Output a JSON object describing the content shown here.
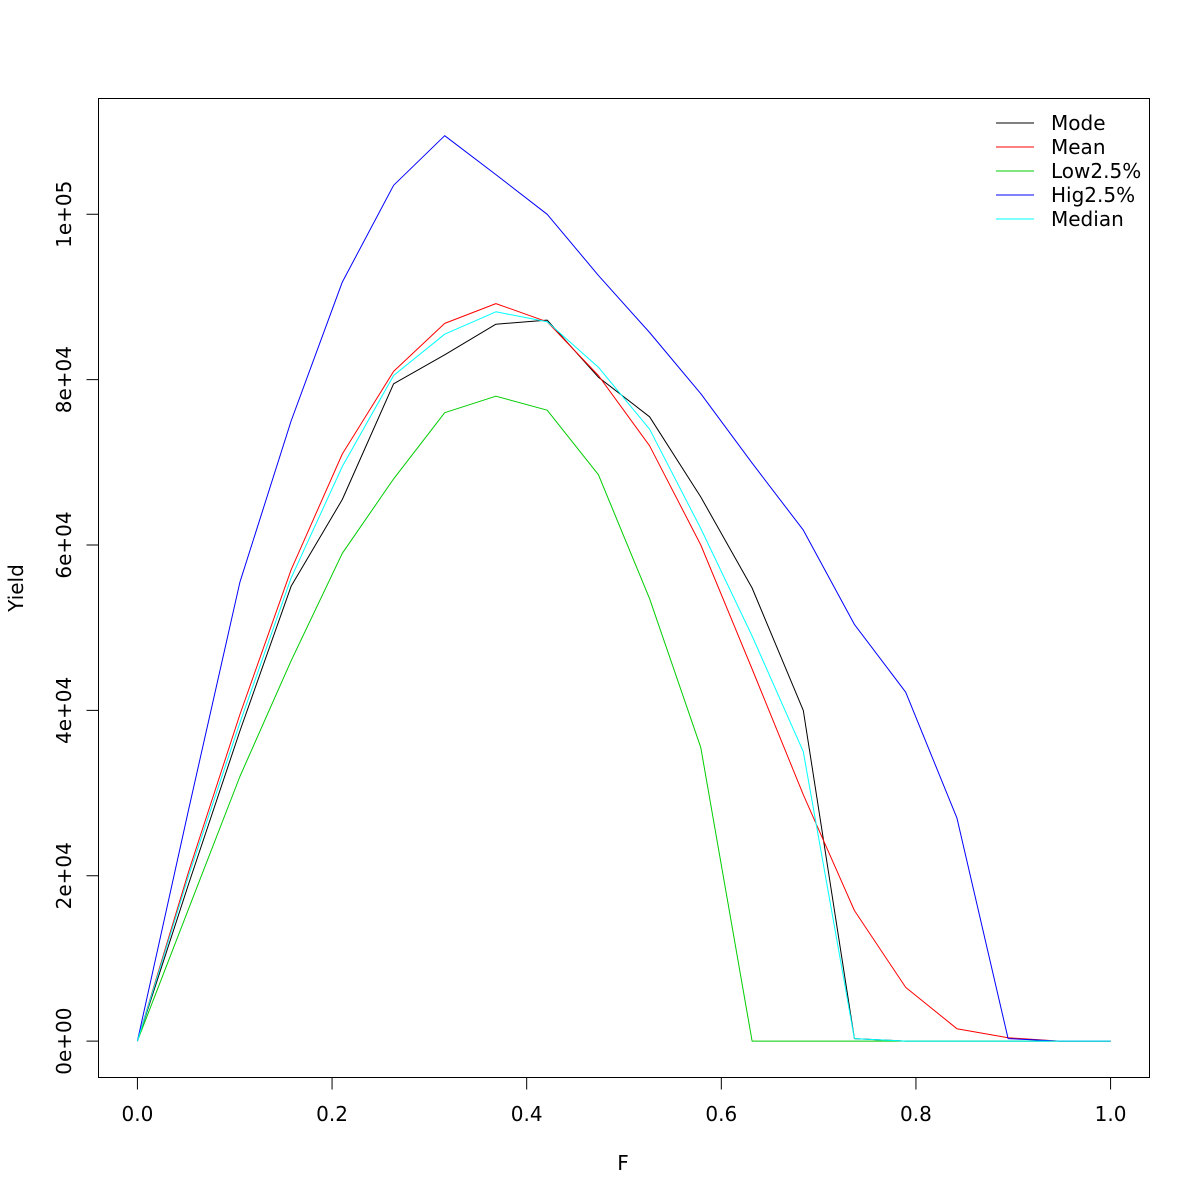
{
  "chart_data": {
    "type": "line",
    "title": "",
    "xlabel": "F",
    "ylabel": "Yield",
    "xlim": [
      -0.04,
      1.04
    ],
    "ylim": [
      -4400,
      114000
    ],
    "xticks": [
      0.0,
      0.2,
      0.4,
      0.6,
      0.8,
      1.0
    ],
    "xtick_labels": [
      "0.0",
      "0.2",
      "0.4",
      "0.6",
      "0.8",
      "1.0"
    ],
    "yticks": [
      0,
      20000,
      40000,
      60000,
      80000,
      100000
    ],
    "ytick_labels": [
      "0e+00",
      "2e+04",
      "4e+04",
      "6e+04",
      "8e+04",
      "1e+05"
    ],
    "grid": false,
    "legend_position": "top-right",
    "x": [
      0.0,
      0.0526,
      0.1053,
      0.1579,
      0.2105,
      0.2632,
      0.3158,
      0.3684,
      0.4211,
      0.4737,
      0.5263,
      0.5789,
      0.6316,
      0.6842,
      0.7368,
      0.7895,
      0.8421,
      0.8947,
      0.9474,
      1.0
    ],
    "series": [
      {
        "name": "Mode",
        "color": "#000000",
        "values": [
          0,
          19000,
          37500,
          55000,
          65500,
          79500,
          83000,
          86700,
          87200,
          80300,
          75500,
          65800,
          54800,
          40000,
          300,
          0,
          0,
          0,
          0,
          0
        ]
      },
      {
        "name": "Mean",
        "color": "#ff0000",
        "values": [
          0,
          20500,
          39500,
          57000,
          71000,
          81000,
          86800,
          89200,
          87000,
          80500,
          72000,
          60000,
          45000,
          29800,
          15800,
          6500,
          1500,
          400,
          0,
          0
        ]
      },
      {
        "name": "Low2.5%",
        "color": "#00cd00",
        "values": [
          0,
          16000,
          32000,
          46000,
          59000,
          68000,
          76000,
          78000,
          76300,
          68500,
          53500,
          35500,
          0,
          0,
          0,
          0,
          0,
          0,
          0,
          0
        ]
      },
      {
        "name": "Hig2.5%",
        "color": "#0000ff",
        "values": [
          0,
          28000,
          55500,
          75000,
          91800,
          103500,
          109500,
          104800,
          100000,
          92600,
          85700,
          78300,
          69900,
          61800,
          50400,
          42200,
          27000,
          300,
          0,
          0
        ]
      },
      {
        "name": "Median",
        "color": "#00ffff",
        "values": [
          0,
          20000,
          38500,
          56000,
          69500,
          80500,
          85500,
          88200,
          87000,
          81500,
          74000,
          62000,
          49000,
          35000,
          300,
          0,
          0,
          0,
          0,
          0
        ]
      }
    ]
  }
}
